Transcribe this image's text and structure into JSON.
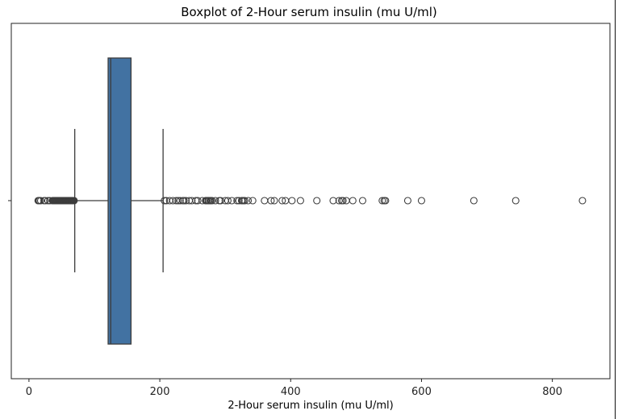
{
  "chart_data": {
    "type": "boxplot",
    "title": "Boxplot of 2-Hour serum insulin (mu U/ml)",
    "xlabel": "2-Hour serum insulin (mu U/ml)",
    "ylabel": "",
    "orientation": "horizontal",
    "xlim": [
      -27,
      888
    ],
    "xticks": [
      0,
      200,
      400,
      600,
      800
    ],
    "grid": false,
    "legend": "none",
    "box_color": "#4272a2",
    "box": {
      "whisker_low": 70,
      "q1": 121,
      "median": 125,
      "q3": 156,
      "whisker_high": 205
    },
    "outliers": [
      14,
      15,
      16,
      18,
      23,
      25,
      29,
      32,
      36,
      37,
      38,
      39,
      40,
      41,
      42,
      43,
      44,
      45,
      46,
      47,
      48,
      49,
      50,
      51,
      52,
      53,
      54,
      55,
      56,
      57,
      58,
      59,
      60,
      61,
      62,
      63,
      64,
      65,
      66,
      67,
      68,
      69,
      207,
      210,
      215,
      220,
      225,
      228,
      231,
      235,
      237,
      240,
      245,
      249,
      255,
      258,
      265,
      270,
      271,
      272,
      274,
      275,
      277,
      278,
      280,
      285,
      291,
      293,
      300,
      304,
      310,
      318,
      321,
      325,
      326,
      328,
      330,
      335,
      342,
      360,
      370,
      375,
      387,
      392,
      402,
      415,
      440,
      465,
      474,
      478,
      480,
      485,
      495,
      510,
      540,
      543,
      545,
      579,
      600,
      680,
      744,
      846
    ]
  }
}
